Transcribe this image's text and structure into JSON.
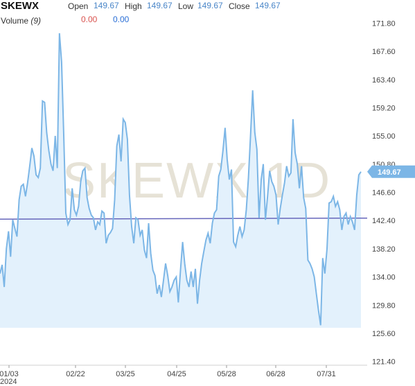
{
  "header": {
    "symbol": "SKEWX",
    "open_label": "Open",
    "open_value": "149.67",
    "high_label": "High",
    "high_value": "149.67",
    "low_label": "Low",
    "low_value": "149.67",
    "close_label": "Close",
    "close_value": "149.67",
    "volume_label": "Volume",
    "volume_period": "(9)",
    "volume_value_1": "0.00",
    "volume_value_2": "0.00"
  },
  "watermark": "SKEWX,1D",
  "last_price_tag": "149.67",
  "colors": {
    "line": "#7cb6e6",
    "fill": "#e3f1fc",
    "reference_line": "#6666bb",
    "tag": "#7cb6e6"
  },
  "chart_data": {
    "type": "area",
    "title": "",
    "xlabel": "",
    "ylabel": "",
    "ylim": [
      119.4,
      173.8
    ],
    "y_ticks": [
      "171.80",
      "167.60",
      "163.40",
      "159.20",
      "155.00",
      "150.80",
      "146.60",
      "142.40",
      "138.20",
      "134.00",
      "129.80",
      "125.60",
      "121.40"
    ],
    "x_ticks": [
      "01/03",
      "02/22",
      "03/25",
      "04/25",
      "05/28",
      "06/28",
      "07/31"
    ],
    "x_year": "2024",
    "reference_line_value": 142.6,
    "last_value": 149.67,
    "series": [
      {
        "values": [
          134.5,
          135.8,
          132.5,
          138.2,
          140.8,
          137.0,
          142.5,
          141.2,
          140.0,
          145.5,
          147.5,
          147.8,
          146.0,
          148.0,
          150.5,
          153.2,
          152.0,
          149.2,
          148.8,
          150.2,
          160.2,
          160.0,
          155.5,
          152.8,
          150.8,
          149.8,
          155.0,
          150.2,
          170.3,
          166.0,
          155.5,
          143.5,
          141.8,
          142.5,
          147.2,
          144.0,
          143.2,
          144.5,
          148.2,
          149.8,
          150.2,
          145.8,
          144.2,
          143.2,
          142.8,
          141.0,
          142.2,
          141.8,
          143.8,
          143.5,
          139.0,
          140.2,
          140.6,
          141.2,
          145.5,
          153.5,
          155.2,
          151.2,
          157.5,
          157.0,
          154.5,
          146.2,
          141.5,
          139.0,
          142.8,
          142.5,
          140.2,
          141.0,
          138.0,
          136.8,
          142.0,
          137.5,
          135.0,
          134.2,
          131.5,
          132.8,
          131.0,
          133.5,
          136.0,
          134.2,
          131.8,
          132.5,
          133.5,
          134.0,
          130.2,
          135.0,
          139.2,
          136.0,
          133.5,
          132.5,
          134.8,
          132.5,
          135.2,
          130.0,
          133.5,
          136.0,
          137.8,
          139.5,
          140.5,
          139.0,
          142.0,
          143.5,
          144.0,
          149.0,
          150.0,
          152.8,
          156.2,
          151.5,
          148.5,
          150.0,
          139.2,
          138.5,
          140.2,
          141.5,
          140.0,
          141.0,
          144.0,
          148.8,
          155.0,
          161.8,
          155.5,
          153.0,
          142.8,
          148.5,
          150.8,
          142.5,
          146.0,
          149.8,
          148.2,
          147.5,
          146.2,
          141.8,
          144.2,
          146.2,
          148.0,
          150.5,
          149.0,
          149.5,
          157.5,
          152.5,
          150.8,
          147.2,
          150.5,
          145.8,
          144.2,
          136.5,
          136.0,
          135.2,
          134.0,
          131.5,
          129.0,
          126.8,
          136.8,
          134.5,
          138.2,
          145.0,
          145.2,
          146.0,
          144.5,
          145.2,
          144.0,
          141.0,
          143.0,
          143.5,
          141.8,
          143.0,
          142.2,
          141.0,
          146.2,
          149.2,
          149.67
        ]
      }
    ]
  }
}
